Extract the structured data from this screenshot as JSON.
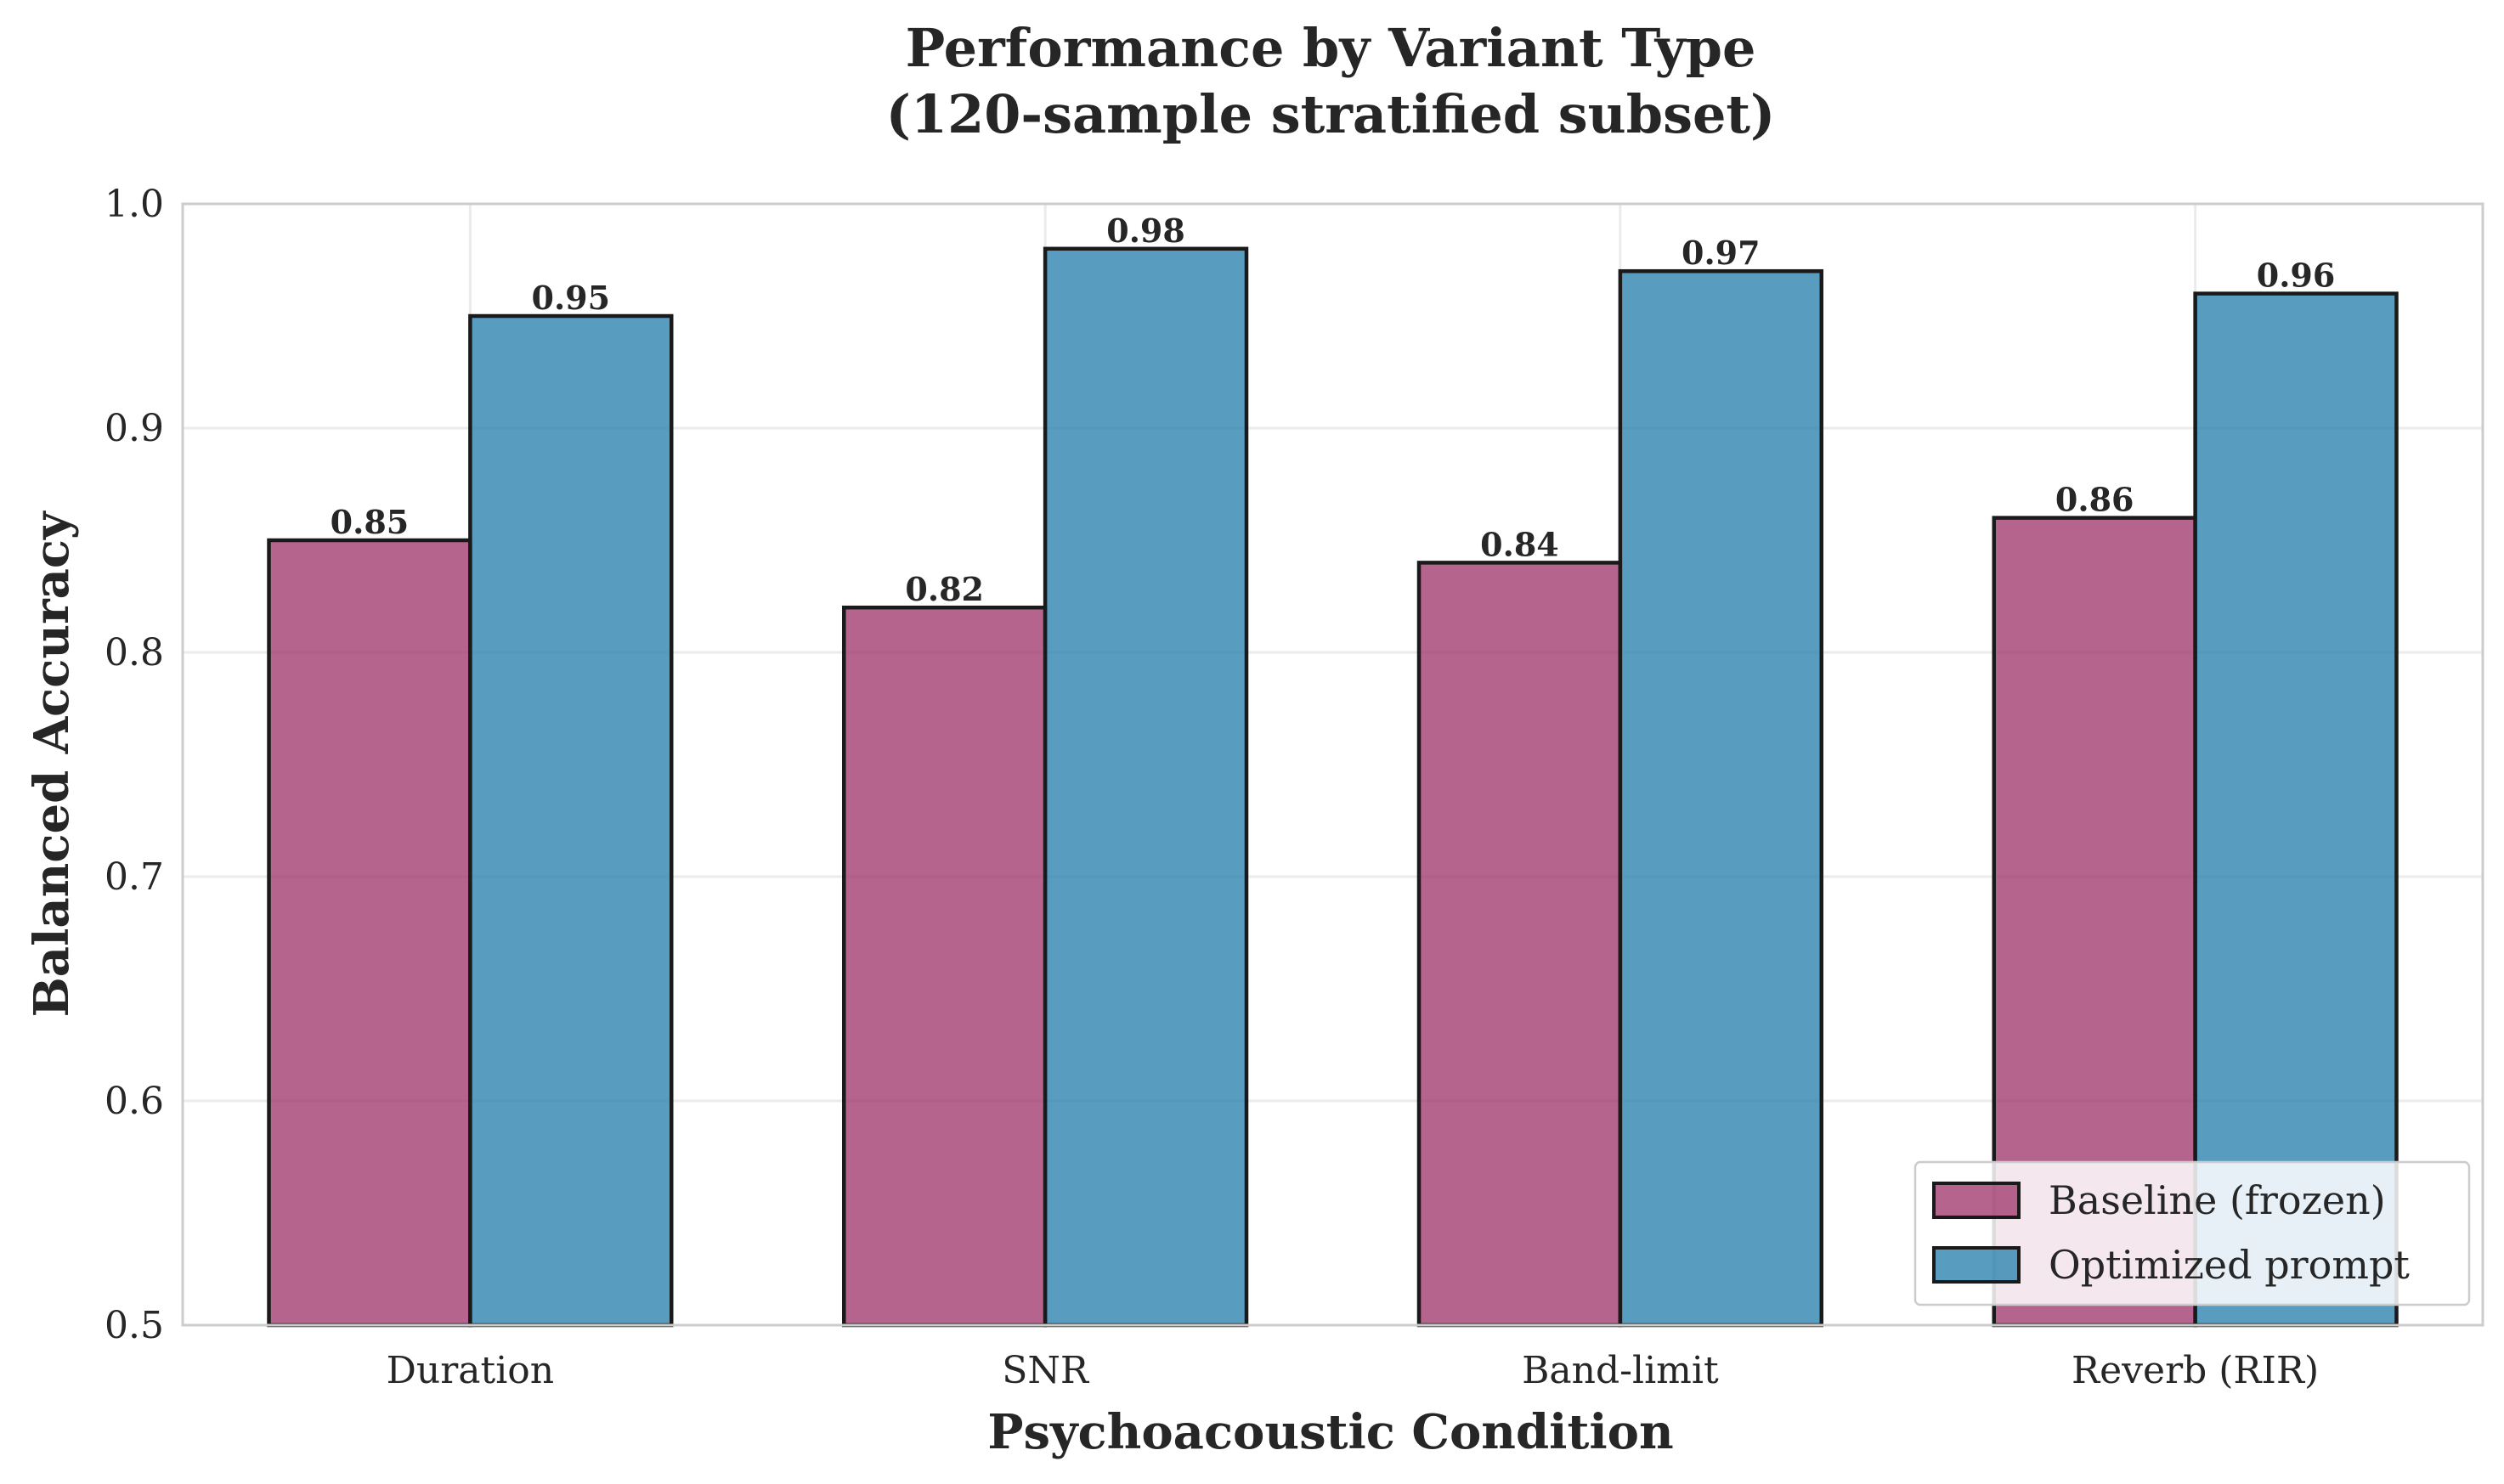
{
  "chart_data": {
    "type": "bar",
    "title": [
      "Performance by Variant Type",
      "(120-sample stratified subset)"
    ],
    "xlabel": "Psychoacoustic Condition",
    "ylabel": "Balanced Accuracy",
    "categories": [
      "Duration",
      "SNR",
      "Band-limit",
      "Reverb (RIR)"
    ],
    "series": [
      {
        "name": "Baseline (frozen)",
        "values": [
          0.85,
          0.82,
          0.84,
          0.86
        ],
        "color": "#a33e70"
      },
      {
        "name": "Optimized prompt",
        "values": [
          0.95,
          0.98,
          0.97,
          0.96
        ],
        "color": "#2e84b0"
      }
    ],
    "value_labels": [
      [
        "0.85",
        "0.82",
        "0.84",
        "0.86"
      ],
      [
        "0.95",
        "0.98",
        "0.97",
        "0.96"
      ]
    ],
    "ylim": [
      0.5,
      1.0
    ],
    "yticks": [
      0.5,
      0.6,
      0.7,
      0.8,
      0.9,
      1.0
    ],
    "ytick_labels": [
      "0.5",
      "0.6",
      "0.7",
      "0.8",
      "0.9",
      "1.0"
    ],
    "grid": true,
    "legend_position": "lower-right"
  }
}
